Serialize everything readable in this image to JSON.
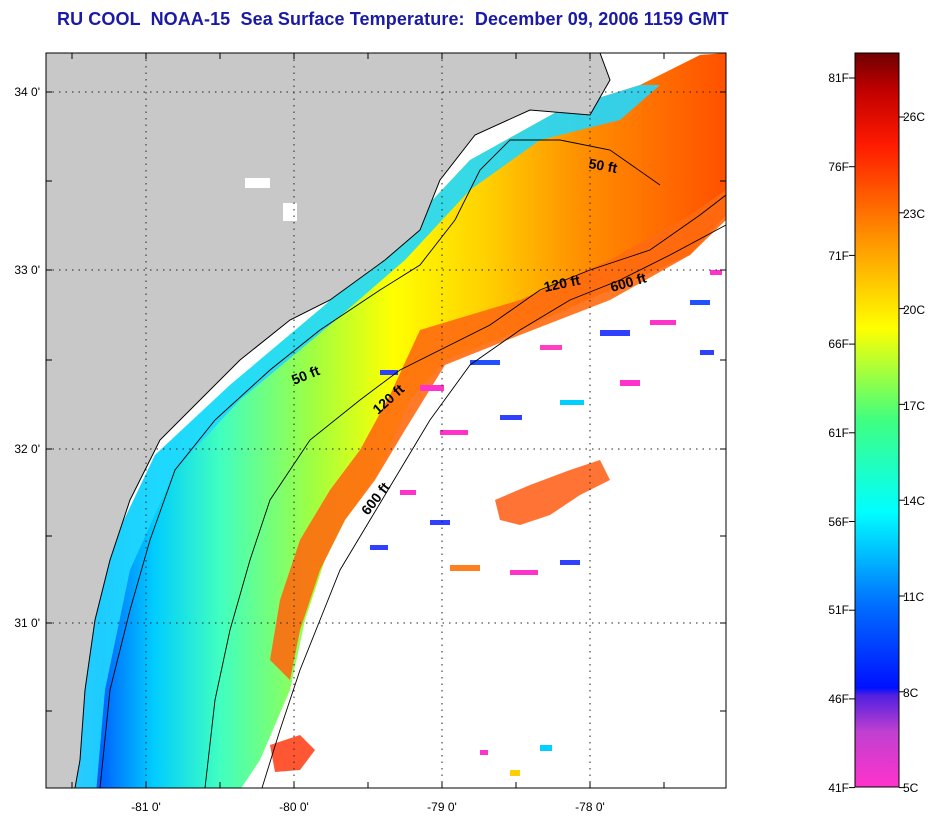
{
  "title": "RU COOL  NOAA-15  Sea Surface Temperature:  December 09, 2006 1159 GMT",
  "map": {
    "lat_ticks": [
      {
        "value": 34,
        "label": "34 0'"
      },
      {
        "value": 33,
        "label": "33 0'"
      },
      {
        "value": 32,
        "label": "32 0'"
      },
      {
        "value": 31,
        "label": "31 0'"
      }
    ],
    "lon_ticks": [
      {
        "value": -81,
        "label": "-81 0'"
      },
      {
        "value": -80,
        "label": "-80 0'"
      },
      {
        "value": -79,
        "label": "-79 0'"
      },
      {
        "value": -78,
        "label": "-78 0'"
      }
    ],
    "isobath_labels": [
      "50 ft",
      "120 ft",
      "600 ft",
      "50 ft",
      "120 ft",
      "600 ft"
    ],
    "colors": {
      "land": "#c8c8c8",
      "no_data": "#ffffff",
      "grid": "#333333"
    }
  },
  "colorbar": {
    "fahrenheit_labels": [
      "81F",
      "76F",
      "71F",
      "66F",
      "61F",
      "56F",
      "51F",
      "46F",
      "41F"
    ],
    "celsius_labels": [
      "26C",
      "23C",
      "20C",
      "17C",
      "14C",
      "11C",
      "8C",
      "5C"
    ],
    "colors": [
      "#ff33cc",
      "#b040d0",
      "#7020e0",
      "#0010ff",
      "#0060ff",
      "#00c0ff",
      "#00ffff",
      "#40ff80",
      "#c0ff00",
      "#ffff00",
      "#ffa000",
      "#ff5000",
      "#ff0000",
      "#d00000",
      "#800000"
    ]
  }
}
